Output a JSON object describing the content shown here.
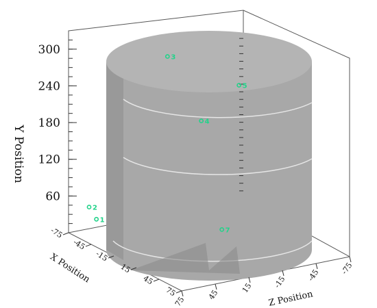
{
  "chart_data": {
    "type": "scatter",
    "title": "",
    "ylabel": "Y Position",
    "xlabel": "X Position",
    "zlabel": "Z Position",
    "y_ticks": [
      "60",
      "120",
      "180",
      "240",
      "300"
    ],
    "x_ticks": [
      "-75",
      "-45",
      "-15",
      "15",
      "45",
      "75"
    ],
    "z_ticks": [
      "75",
      "45",
      "15",
      "-15",
      "-45",
      "-75"
    ],
    "points": [
      {
        "label": "1",
        "x": -40,
        "y": 20,
        "z": 40
      },
      {
        "label": "2",
        "x": -20,
        "y": 60,
        "z": 60
      },
      {
        "label": "3",
        "x": -20,
        "y": 280,
        "z": -10
      },
      {
        "label": "4",
        "x": 10,
        "y": 190,
        "z": -20
      },
      {
        "label": "5",
        "x": 60,
        "y": 280,
        "z": -20
      },
      {
        "label": "7",
        "x": 15,
        "y": 10,
        "z": -35
      }
    ],
    "colors": {
      "cylinder": "#a8a8a8",
      "cylinder_shadow": "#8c8c8c",
      "point": "#22d38a",
      "ring": "#e6e6e6"
    }
  }
}
